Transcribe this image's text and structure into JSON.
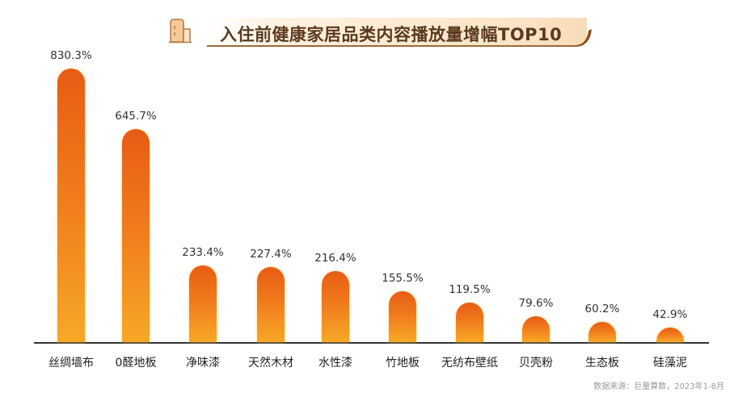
{
  "header": {
    "title": "入住前健康家居品类内容播放量增幅TOP10",
    "icon": "building-icon"
  },
  "chart_data": {
    "type": "bar",
    "title": "入住前健康家居品类内容播放量增幅TOP10",
    "xlabel": "",
    "ylabel": "",
    "grid": false,
    "legend": null,
    "categories": [
      "丝绸墙布",
      "0醛地板",
      "净味漆",
      "天然木材",
      "水性漆",
      "竹地板",
      "无纺布壁纸",
      "贝壳粉",
      "生态板",
      "硅藻泥"
    ],
    "values": [
      830.3,
      645.7,
      233.4,
      227.4,
      216.4,
      155.5,
      119.5,
      79.6,
      60.2,
      42.9
    ],
    "value_labels": [
      "830.3%",
      "645.7%",
      "233.4%",
      "227.4%",
      "216.4%",
      "155.5%",
      "119.5%",
      "79.6%",
      "60.2%",
      "42.9%"
    ],
    "unit": "%",
    "ylim": [
      0,
      900
    ],
    "colors": {
      "bar_top": "#e85c14",
      "bar_bottom": "#f7a826",
      "baseline": "#333333"
    }
  },
  "footer": {
    "source": "数据来源：巨量算数，2023年1-8月"
  }
}
